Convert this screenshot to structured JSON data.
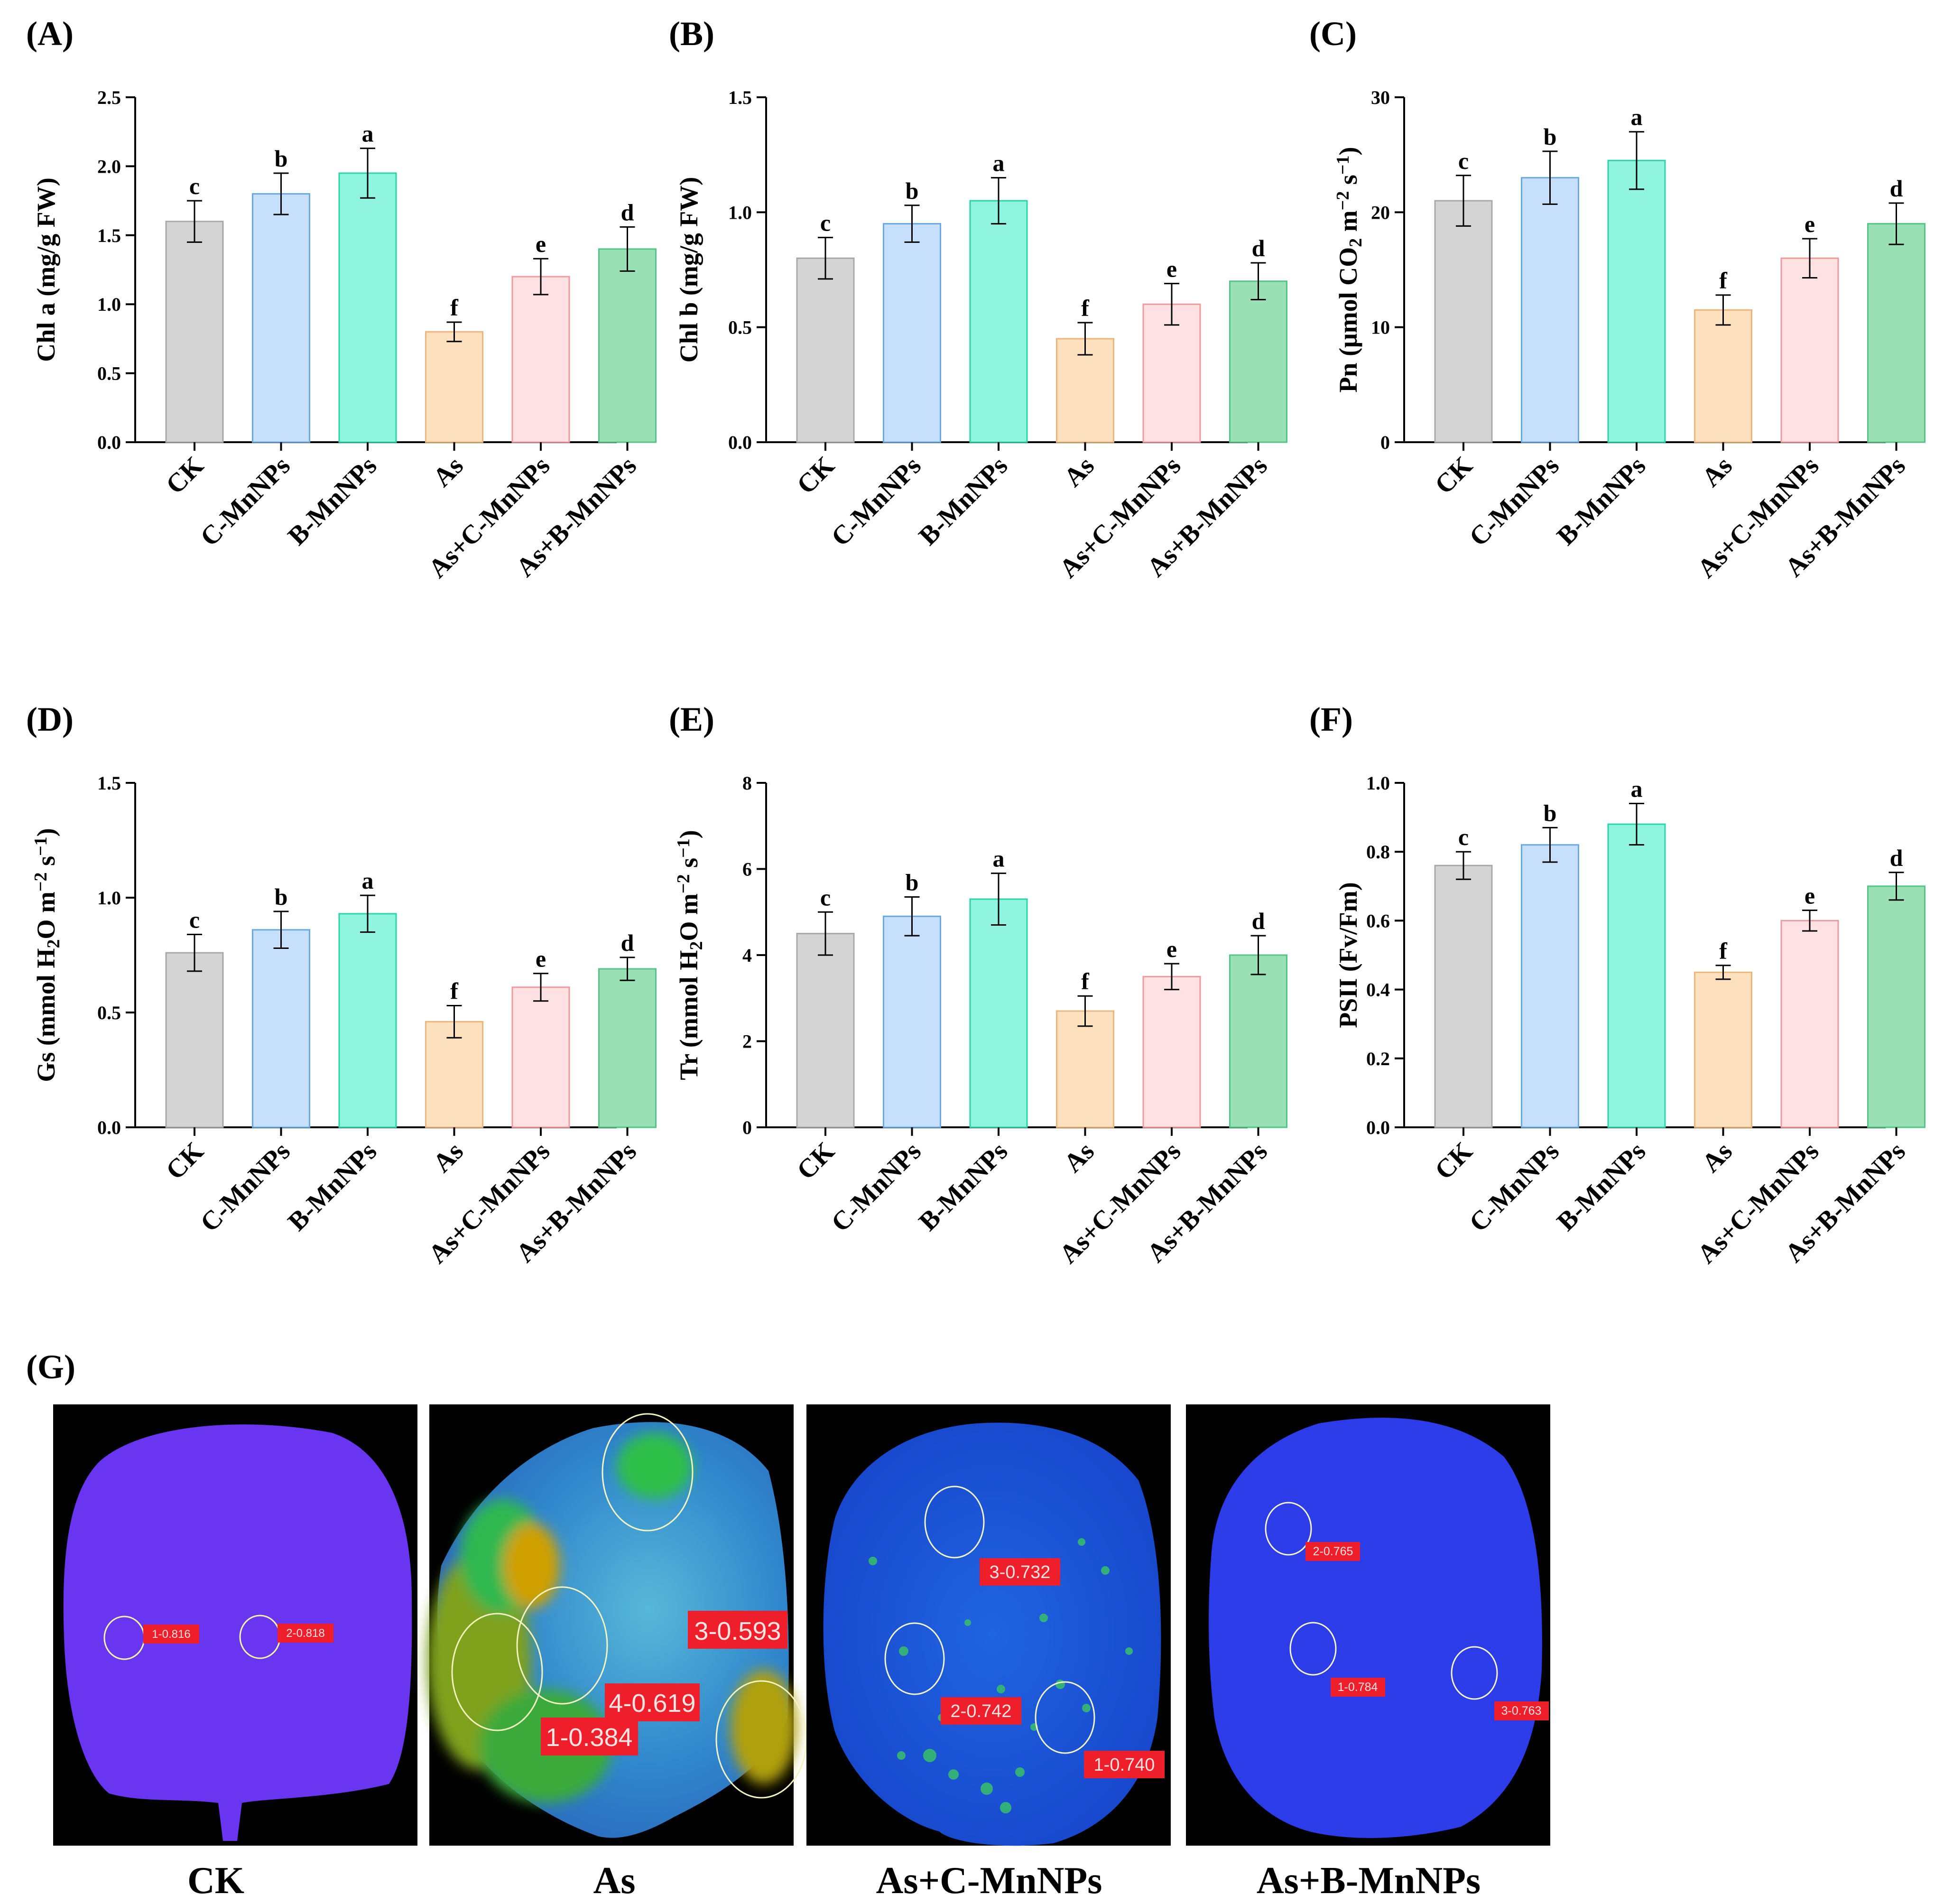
{
  "panel_letters": [
    "(A)",
    "(B)",
    "(C)",
    "(D)",
    "(E)",
    "(F)"
  ],
  "categories": [
    "CK",
    "C-MnNPs",
    "B-MnNPs",
    "As",
    "As+C-MnNPs",
    "As+B-MnNPs"
  ],
  "colors": {
    "fills": [
      "#d4d4d4",
      "#c6e0fb",
      "#8ff5df",
      "#fde0be",
      "#fde1e3",
      "#99e1b5"
    ],
    "strokes": [
      "#a8a8a8",
      "#6aa9e3",
      "#2fd3a9",
      "#f0b57a",
      "#f09a9f",
      "#55c585"
    ],
    "axis": "#000000"
  },
  "chart_data": [
    {
      "type": "bar",
      "panel": "(A)",
      "ylabel_parts": [
        {
          "t": "Chl a (mg/g FW)"
        }
      ],
      "ylim": [
        0,
        2.5
      ],
      "yticks": [
        "0.0",
        "0.5",
        "1.0",
        "1.5",
        "2.0",
        "2.5"
      ],
      "ytick_values": [
        0,
        0.5,
        1.0,
        1.5,
        2.0,
        2.5
      ],
      "values": [
        1.6,
        1.8,
        1.95,
        0.8,
        1.2,
        1.4
      ],
      "errors": [
        0.15,
        0.15,
        0.18,
        0.07,
        0.13,
        0.16
      ],
      "letters": [
        "c",
        "b",
        "a",
        "f",
        "e",
        "d"
      ]
    },
    {
      "type": "bar",
      "panel": "(B)",
      "ylabel_parts": [
        {
          "t": "Chl b (mg/g FW)"
        }
      ],
      "ylim": [
        0,
        1.5
      ],
      "yticks": [
        "0.0",
        "0.5",
        "1.0",
        "1.5"
      ],
      "ytick_values": [
        0,
        0.5,
        1.0,
        1.5
      ],
      "values": [
        0.8,
        0.95,
        1.05,
        0.45,
        0.6,
        0.7
      ],
      "errors": [
        0.09,
        0.08,
        0.1,
        0.07,
        0.09,
        0.08
      ],
      "letters": [
        "c",
        "b",
        "a",
        "f",
        "e",
        "d"
      ]
    },
    {
      "type": "bar",
      "panel": "(C)",
      "ylabel_parts": [
        {
          "t": "Pn (μmol CO"
        },
        {
          "t": "2",
          "sub": true
        },
        {
          "t": " m"
        },
        {
          "t": "−2",
          "sup": true
        },
        {
          "t": " s"
        },
        {
          "t": "−1",
          "sup": true
        },
        {
          "t": ")"
        }
      ],
      "ylim": [
        0,
        30
      ],
      "yticks": [
        "0",
        "10",
        "20",
        "30"
      ],
      "ytick_values": [
        0,
        10,
        20,
        30
      ],
      "values": [
        21,
        23,
        24.5,
        11.5,
        16,
        19
      ],
      "errors": [
        2.2,
        2.3,
        2.5,
        1.3,
        1.7,
        1.8
      ],
      "letters": [
        "c",
        "b",
        "a",
        "f",
        "e",
        "d"
      ]
    },
    {
      "type": "bar",
      "panel": "(D)",
      "ylabel_parts": [
        {
          "t": "Gs (mmol H"
        },
        {
          "t": "2",
          "sub": true
        },
        {
          "t": "O m"
        },
        {
          "t": "−2",
          "sup": true
        },
        {
          "t": " s"
        },
        {
          "t": "−1",
          "sup": true
        },
        {
          "t": ")"
        }
      ],
      "ylim": [
        0,
        1.5
      ],
      "yticks": [
        "0.0",
        "0.5",
        "1.0",
        "1.5"
      ],
      "ytick_values": [
        0,
        0.5,
        1.0,
        1.5
      ],
      "values": [
        0.76,
        0.86,
        0.93,
        0.46,
        0.61,
        0.69
      ],
      "errors": [
        0.08,
        0.08,
        0.08,
        0.07,
        0.06,
        0.05
      ],
      "letters": [
        "c",
        "b",
        "a",
        "f",
        "e",
        "d"
      ]
    },
    {
      "type": "bar",
      "panel": "(E)",
      "ylabel_parts": [
        {
          "t": "Tr (mmol H"
        },
        {
          "t": "2",
          "sub": true
        },
        {
          "t": "O m"
        },
        {
          "t": "−2",
          "sup": true
        },
        {
          "t": " s"
        },
        {
          "t": "−1",
          "sup": true
        },
        {
          "t": ")"
        }
      ],
      "ylim": [
        0,
        8
      ],
      "yticks": [
        "0",
        "2",
        "4",
        "6",
        "8"
      ],
      "ytick_values": [
        0,
        2,
        4,
        6,
        8
      ],
      "values": [
        4.5,
        4.9,
        5.3,
        2.7,
        3.5,
        4.0
      ],
      "errors": [
        0.5,
        0.45,
        0.6,
        0.35,
        0.3,
        0.45
      ],
      "letters": [
        "c",
        "b",
        "a",
        "f",
        "e",
        "d"
      ]
    },
    {
      "type": "bar",
      "panel": "(F)",
      "ylabel_parts": [
        {
          "t": "PSII (Fv/Fm)"
        }
      ],
      "ylim": [
        0,
        1.0
      ],
      "yticks": [
        "0.0",
        "0.2",
        "0.4",
        "0.6",
        "0.8",
        "1.0"
      ],
      "ytick_values": [
        0,
        0.2,
        0.4,
        0.6,
        0.8,
        1.0
      ],
      "values": [
        0.76,
        0.82,
        0.88,
        0.45,
        0.6,
        0.7
      ],
      "errors": [
        0.04,
        0.05,
        0.06,
        0.02,
        0.03,
        0.04
      ],
      "letters": [
        "c",
        "b",
        "a",
        "f",
        "e",
        "d"
      ]
    }
  ],
  "image_panel": {
    "letter": "(G)",
    "images": [
      {
        "label": "CK",
        "style": "ck",
        "readouts": [
          "1-0.816",
          "2-0.818"
        ]
      },
      {
        "label": "As",
        "style": "as",
        "readouts": [
          "3-0.593",
          "4-0.619",
          "1-0.384"
        ]
      },
      {
        "label": "As+C-MnNPs",
        "style": "asc",
        "readouts": [
          "3-0.732",
          "2-0.742",
          "1-0.740"
        ]
      },
      {
        "label": "As+B-MnNPs",
        "style": "asb",
        "readouts": [
          "2-0.765",
          "1-0.784",
          "3-0.763"
        ]
      }
    ]
  }
}
